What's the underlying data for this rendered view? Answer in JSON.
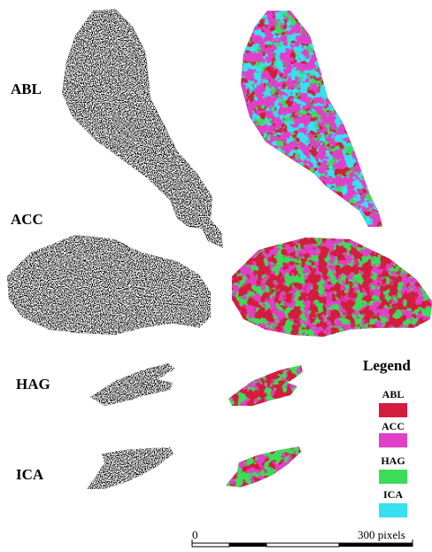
{
  "labels": {
    "abl": "ABL",
    "acc": "ACC",
    "hag": "HAG",
    "ica": "ICA"
  },
  "legend": {
    "title": "Legend",
    "items": [
      {
        "label": "ABL",
        "color": "#d41c3c"
      },
      {
        "label": "ACC",
        "color": "#e040c8"
      },
      {
        "label": "HAG",
        "color": "#3cdc58"
      },
      {
        "label": "ICA",
        "color": "#38e0f0"
      }
    ]
  },
  "scale_bar": {
    "start_label": "0",
    "end_label": "300 pixels"
  },
  "colors": {
    "black": "#000000",
    "white": "#ffffff"
  }
}
